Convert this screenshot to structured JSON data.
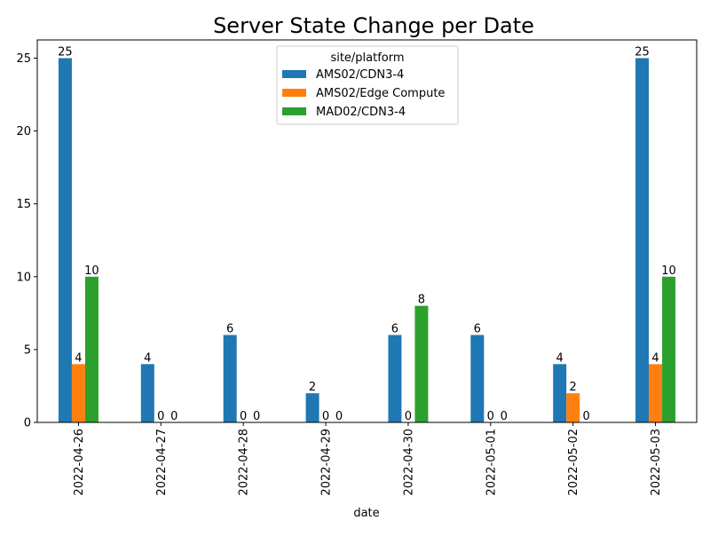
{
  "chart_data": {
    "type": "bar",
    "title": "Server State Change per Date",
    "xlabel": "date",
    "ylabel": "",
    "ylim": [
      0,
      26.25
    ],
    "yticks": [
      0,
      5,
      10,
      15,
      20,
      25
    ],
    "grid": false,
    "legend": {
      "title": "site/platform",
      "placement": "top-center"
    },
    "categories": [
      "2022-04-26",
      "2022-04-27",
      "2022-04-28",
      "2022-04-29",
      "2022-04-30",
      "2022-05-01",
      "2022-05-02",
      "2022-05-03"
    ],
    "series": [
      {
        "name": "AMS02/CDN3-4",
        "color": "#1f77b4",
        "values": [
          25,
          4,
          6,
          2,
          6,
          6,
          4,
          25
        ]
      },
      {
        "name": "AMS02/Edge Compute",
        "color": "#ff7f0e",
        "values": [
          4,
          0,
          0,
          0,
          0,
          0,
          2,
          4
        ]
      },
      {
        "name": "MAD02/CDN3-4",
        "color": "#2ca02c",
        "values": [
          10,
          0,
          0,
          0,
          8,
          0,
          0,
          10
        ]
      }
    ]
  }
}
